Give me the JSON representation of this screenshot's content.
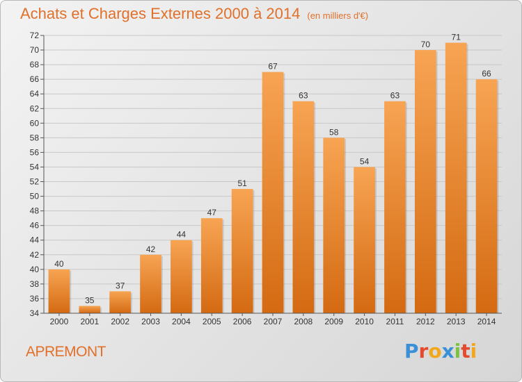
{
  "header": {
    "title": "Achats et Charges Externes 2000 à 2014",
    "subtitle": "(en milliers d'€)"
  },
  "footer": {
    "place": "APREMONT",
    "logo_letters": [
      {
        "ch": "P",
        "color": "#3a8fd6"
      },
      {
        "ch": "r",
        "color": "#e44b2e"
      },
      {
        "ch": "o",
        "color": "#f2a81d"
      },
      {
        "ch": "x",
        "color": "#3a8fd6"
      },
      {
        "ch": "i",
        "color": "#7cc243"
      },
      {
        "ch": "t",
        "color": "#e44b2e"
      },
      {
        "ch": "i",
        "color": "#f2a81d"
      }
    ]
  },
  "chart_data": {
    "type": "bar",
    "title": "Achats et Charges Externes 2000 à 2014",
    "subtitle": "(en milliers d'€)",
    "categories": [
      "2000",
      "2001",
      "2002",
      "2003",
      "2004",
      "2005",
      "2006",
      "2007",
      "2008",
      "2009",
      "2010",
      "2011",
      "2012",
      "2013",
      "2014"
    ],
    "values": [
      40,
      35,
      37,
      42,
      44,
      47,
      51,
      67,
      63,
      58,
      54,
      63,
      70,
      71,
      66
    ],
    "ylim": [
      34,
      72
    ],
    "yticks": [
      34,
      36,
      38,
      40,
      42,
      44,
      46,
      48,
      50,
      52,
      54,
      56,
      58,
      60,
      62,
      64,
      66,
      68,
      70,
      72
    ],
    "grid": true,
    "bar_color_top": "#f7a453",
    "bar_color_bottom": "#d46a12"
  }
}
